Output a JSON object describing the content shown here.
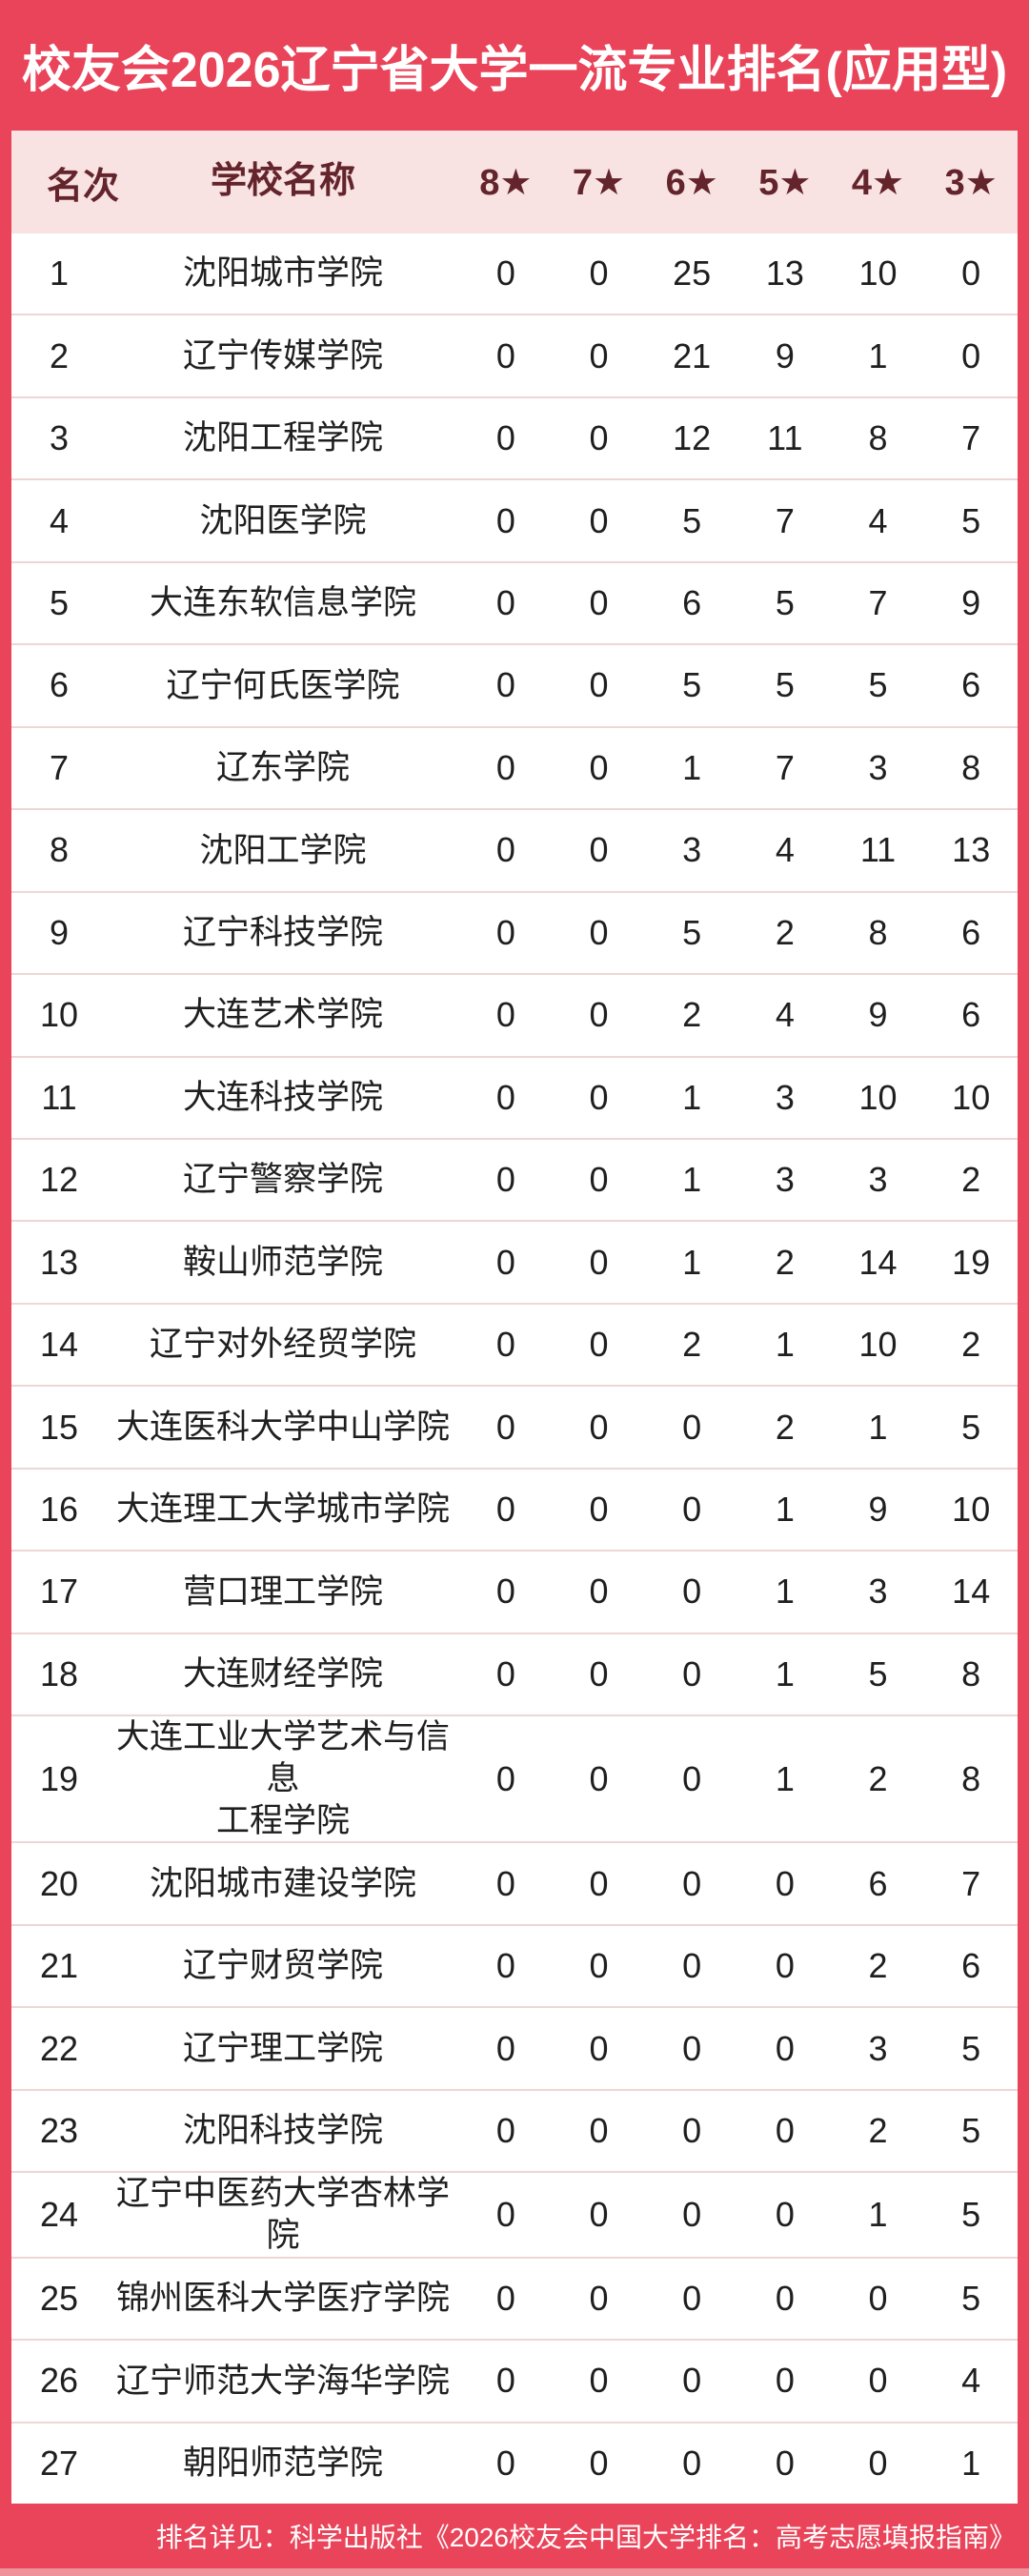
{
  "title": "校友会2026辽宁省大学一流专业排名(应用型)",
  "colors": {
    "accent_red": "#e94459",
    "header_pink": "#f8e2e2",
    "header_text_maroon": "#63242c",
    "row_text": "#1f1f1f",
    "separator": "#eed6d6",
    "bottom_strip": "#f0929c"
  },
  "table": {
    "columns": [
      "名次",
      "学校名称",
      "8★",
      "7★",
      "6★",
      "5★",
      "4★",
      "3★"
    ],
    "rows": [
      {
        "rank": "1",
        "school": "沈阳城市学院",
        "stars": [
          "0",
          "0",
          "25",
          "13",
          "10",
          "0"
        ]
      },
      {
        "rank": "2",
        "school": "辽宁传媒学院",
        "stars": [
          "0",
          "0",
          "21",
          "9",
          "1",
          "0"
        ]
      },
      {
        "rank": "3",
        "school": "沈阳工程学院",
        "stars": [
          "0",
          "0",
          "12",
          "11",
          "8",
          "7"
        ]
      },
      {
        "rank": "4",
        "school": "沈阳医学院",
        "stars": [
          "0",
          "0",
          "5",
          "7",
          "4",
          "5"
        ]
      },
      {
        "rank": "5",
        "school": "大连东软信息学院",
        "stars": [
          "0",
          "0",
          "6",
          "5",
          "7",
          "9"
        ]
      },
      {
        "rank": "6",
        "school": "辽宁何氏医学院",
        "stars": [
          "0",
          "0",
          "5",
          "5",
          "5",
          "6"
        ]
      },
      {
        "rank": "7",
        "school": "辽东学院",
        "stars": [
          "0",
          "0",
          "1",
          "7",
          "3",
          "8"
        ]
      },
      {
        "rank": "8",
        "school": "沈阳工学院",
        "stars": [
          "0",
          "0",
          "3",
          "4",
          "11",
          "13"
        ]
      },
      {
        "rank": "9",
        "school": "辽宁科技学院",
        "stars": [
          "0",
          "0",
          "5",
          "2",
          "8",
          "6"
        ]
      },
      {
        "rank": "10",
        "school": "大连艺术学院",
        "stars": [
          "0",
          "0",
          "2",
          "4",
          "9",
          "6"
        ]
      },
      {
        "rank": "11",
        "school": "大连科技学院",
        "stars": [
          "0",
          "0",
          "1",
          "3",
          "10",
          "10"
        ]
      },
      {
        "rank": "12",
        "school": "辽宁警察学院",
        "stars": [
          "0",
          "0",
          "1",
          "3",
          "3",
          "2"
        ]
      },
      {
        "rank": "13",
        "school": "鞍山师范学院",
        "stars": [
          "0",
          "0",
          "1",
          "2",
          "14",
          "19"
        ]
      },
      {
        "rank": "14",
        "school": "辽宁对外经贸学院",
        "stars": [
          "0",
          "0",
          "2",
          "1",
          "10",
          "2"
        ]
      },
      {
        "rank": "15",
        "school": "大连医科大学中山学院",
        "stars": [
          "0",
          "0",
          "0",
          "2",
          "1",
          "5"
        ]
      },
      {
        "rank": "16",
        "school": "大连理工大学城市学院",
        "stars": [
          "0",
          "0",
          "0",
          "1",
          "9",
          "10"
        ]
      },
      {
        "rank": "17",
        "school": "营口理工学院",
        "stars": [
          "0",
          "0",
          "0",
          "1",
          "3",
          "14"
        ]
      },
      {
        "rank": "18",
        "school": "大连财经学院",
        "stars": [
          "0",
          "0",
          "0",
          "1",
          "5",
          "8"
        ]
      },
      {
        "rank": "19",
        "school": "大连工业大学艺术与信息\n工程学院",
        "stars": [
          "0",
          "0",
          "0",
          "1",
          "2",
          "8"
        ]
      },
      {
        "rank": "20",
        "school": "沈阳城市建设学院",
        "stars": [
          "0",
          "0",
          "0",
          "0",
          "6",
          "7"
        ]
      },
      {
        "rank": "21",
        "school": "辽宁财贸学院",
        "stars": [
          "0",
          "0",
          "0",
          "0",
          "2",
          "6"
        ]
      },
      {
        "rank": "22",
        "school": "辽宁理工学院",
        "stars": [
          "0",
          "0",
          "0",
          "0",
          "3",
          "5"
        ]
      },
      {
        "rank": "23",
        "school": "沈阳科技学院",
        "stars": [
          "0",
          "0",
          "0",
          "0",
          "2",
          "5"
        ]
      },
      {
        "rank": "24",
        "school": "辽宁中医药大学杏林学院",
        "stars": [
          "0",
          "0",
          "0",
          "0",
          "1",
          "5"
        ]
      },
      {
        "rank": "25",
        "school": "锦州医科大学医疗学院",
        "stars": [
          "0",
          "0",
          "0",
          "0",
          "0",
          "5"
        ]
      },
      {
        "rank": "26",
        "school": "辽宁师范大学海华学院",
        "stars": [
          "0",
          "0",
          "0",
          "0",
          "0",
          "4"
        ]
      },
      {
        "rank": "27",
        "school": "朝阳师范学院",
        "stars": [
          "0",
          "0",
          "0",
          "0",
          "0",
          "1"
        ]
      }
    ]
  },
  "footer": {
    "note": "排名详见：科学出版社《2026校友会中国大学排名：高考志愿填报指南》"
  }
}
